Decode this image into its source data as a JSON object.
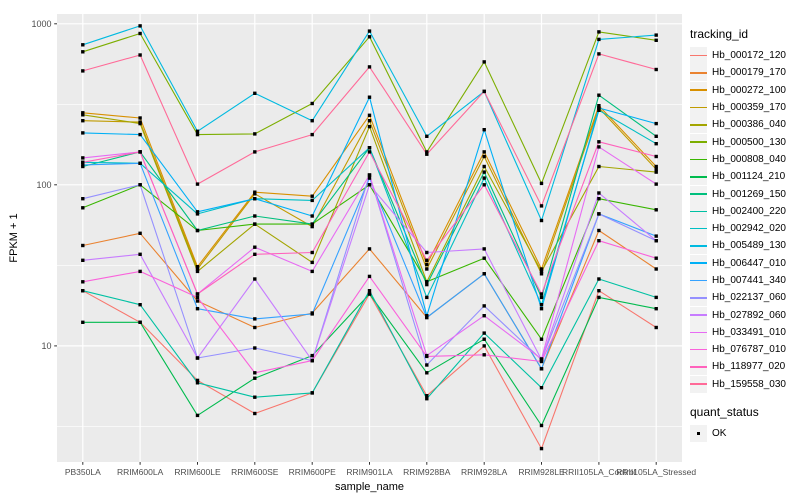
{
  "chart_data": {
    "type": "line",
    "title": "",
    "x_axis_label": "sample_name",
    "y_axis_label": "FPKM + 1",
    "y_scale": "log10",
    "y_ticks": [
      10,
      100,
      1000
    ],
    "y_minor_ticks": [
      3.162,
      31.623,
      316.228
    ],
    "ylim": [
      1.9,
      1150
    ],
    "grid": "on",
    "legend_position": "right",
    "legend_title": "tracking_id",
    "quant_legend": {
      "title": "quant_status",
      "items": [
        {
          "label": "OK",
          "marker": "point",
          "color": "#000000"
        }
      ]
    },
    "marker": {
      "shape": "point",
      "color": "#000000"
    },
    "categories": [
      "PB350LA",
      "RRIM600LA",
      "RRIM600LE",
      "RRIM600SE",
      "RRIM600PE",
      "RRIM901LA",
      "RRIM928BA",
      "RRIM928LA",
      "RRIM928LE",
      "RRII105LA_Control",
      "RRII105LA_Stressed"
    ],
    "series": [
      {
        "name": "Hb_000172_120",
        "color": "#F8766D",
        "values": [
          22,
          14,
          6.1,
          3.8,
          5.1,
          21,
          4.9,
          10,
          2.3,
          22,
          13
        ]
      },
      {
        "name": "Hb_000179_170",
        "color": "#EA8331",
        "values": [
          42,
          50,
          19,
          13,
          16,
          40,
          15,
          28,
          7.2,
          52,
          30
        ]
      },
      {
        "name": "Hb_000272_100",
        "color": "#D89000",
        "values": [
          280,
          260,
          31,
          90,
          85,
          270,
          32,
          160,
          30,
          310,
          130
        ]
      },
      {
        "name": "Hb_000359_170",
        "color": "#C09B00",
        "values": [
          250,
          245,
          30,
          88,
          55,
          250,
          30,
          150,
          28,
          300,
          125
        ]
      },
      {
        "name": "Hb_000386_040",
        "color": "#A3A500",
        "values": [
          272,
          240,
          29,
          57,
          33,
          230,
          25,
          130,
          29,
          130,
          120
        ]
      },
      {
        "name": "Hb_000500_130",
        "color": "#7CAE00",
        "values": [
          670,
          870,
          205,
          207,
          320,
          830,
          160,
          580,
          102,
          890,
          790
        ]
      },
      {
        "name": "Hb_000808_040",
        "color": "#39B600",
        "values": [
          72,
          100,
          52,
          57,
          57,
          100,
          25,
          35,
          11,
          82,
          70
        ]
      },
      {
        "name": "Hb_001124_210",
        "color": "#00BB4E",
        "values": [
          14,
          14,
          3.7,
          6.3,
          8.7,
          21,
          6.8,
          11,
          3.2,
          20,
          17
        ]
      },
      {
        "name": "Hb_001269_150",
        "color": "#00BF7D",
        "values": [
          130,
          160,
          52,
          64,
          57,
          170,
          24,
          120,
          20,
          360,
          200
        ]
      },
      {
        "name": "Hb_002400_220",
        "color": "#00C1A3",
        "values": [
          22,
          18,
          5.9,
          4.8,
          5.1,
          22,
          4.7,
          12,
          5.5,
          26,
          20
        ]
      },
      {
        "name": "Hb_002942_020",
        "color": "#00BFC4",
        "values": [
          138,
          136,
          66,
          82,
          80,
          170,
          20,
          110,
          18,
          290,
          180
        ]
      },
      {
        "name": "Hb_005489_130",
        "color": "#00BAE0",
        "values": [
          740,
          970,
          215,
          370,
          250,
          900,
          200,
          380,
          60,
          800,
          850
        ]
      },
      {
        "name": "Hb_006447_010",
        "color": "#00B0F6",
        "values": [
          210,
          205,
          68,
          82,
          64,
          350,
          15.4,
          220,
          17,
          300,
          240
        ]
      },
      {
        "name": "Hb_007441_340",
        "color": "#35A2FF",
        "values": [
          133,
          136,
          17,
          14.7,
          15.8,
          110,
          15,
          28,
          7.2,
          66,
          48
        ]
      },
      {
        "name": "Hb_022137_060",
        "color": "#9590FF",
        "values": [
          82,
          100,
          8.4,
          9.7,
          8.1,
          115,
          7.6,
          17.7,
          8.2,
          66,
          45
        ]
      },
      {
        "name": "Hb_027892_060",
        "color": "#C77CFF",
        "values": [
          34,
          37,
          8.4,
          26,
          8.1,
          100,
          38,
          40,
          8.2,
          89,
          45
        ]
      },
      {
        "name": "Hb_033491_010",
        "color": "#E76BF3",
        "values": [
          147,
          160,
          21,
          41,
          29,
          115,
          8.7,
          15.4,
          8.3,
          172,
          101
        ]
      },
      {
        "name": "Hb_076787_010",
        "color": "#FA62DB",
        "values": [
          25,
          29,
          20,
          6.8,
          8.1,
          27,
          8.6,
          8.8,
          8.0,
          45,
          35
        ]
      },
      {
        "name": "Hb_118977_020",
        "color": "#FF62BC",
        "values": [
          138,
          160,
          21,
          37,
          38,
          160,
          34,
          100,
          21,
          185,
          150
        ]
      },
      {
        "name": "Hb_159558_030",
        "color": "#FF6A98",
        "values": [
          510,
          640,
          101,
          160,
          205,
          540,
          155,
          380,
          74,
          650,
          520
        ]
      }
    ]
  },
  "colors": {
    "panel_bg": "#EBEBEB",
    "grid": "#FFFFFF",
    "tick_text": "#4D4D4D",
    "tick_mark": "#333333",
    "axis_title": "#000000",
    "legend_key_bg": "#F2F2F2",
    "point": "#000000"
  }
}
